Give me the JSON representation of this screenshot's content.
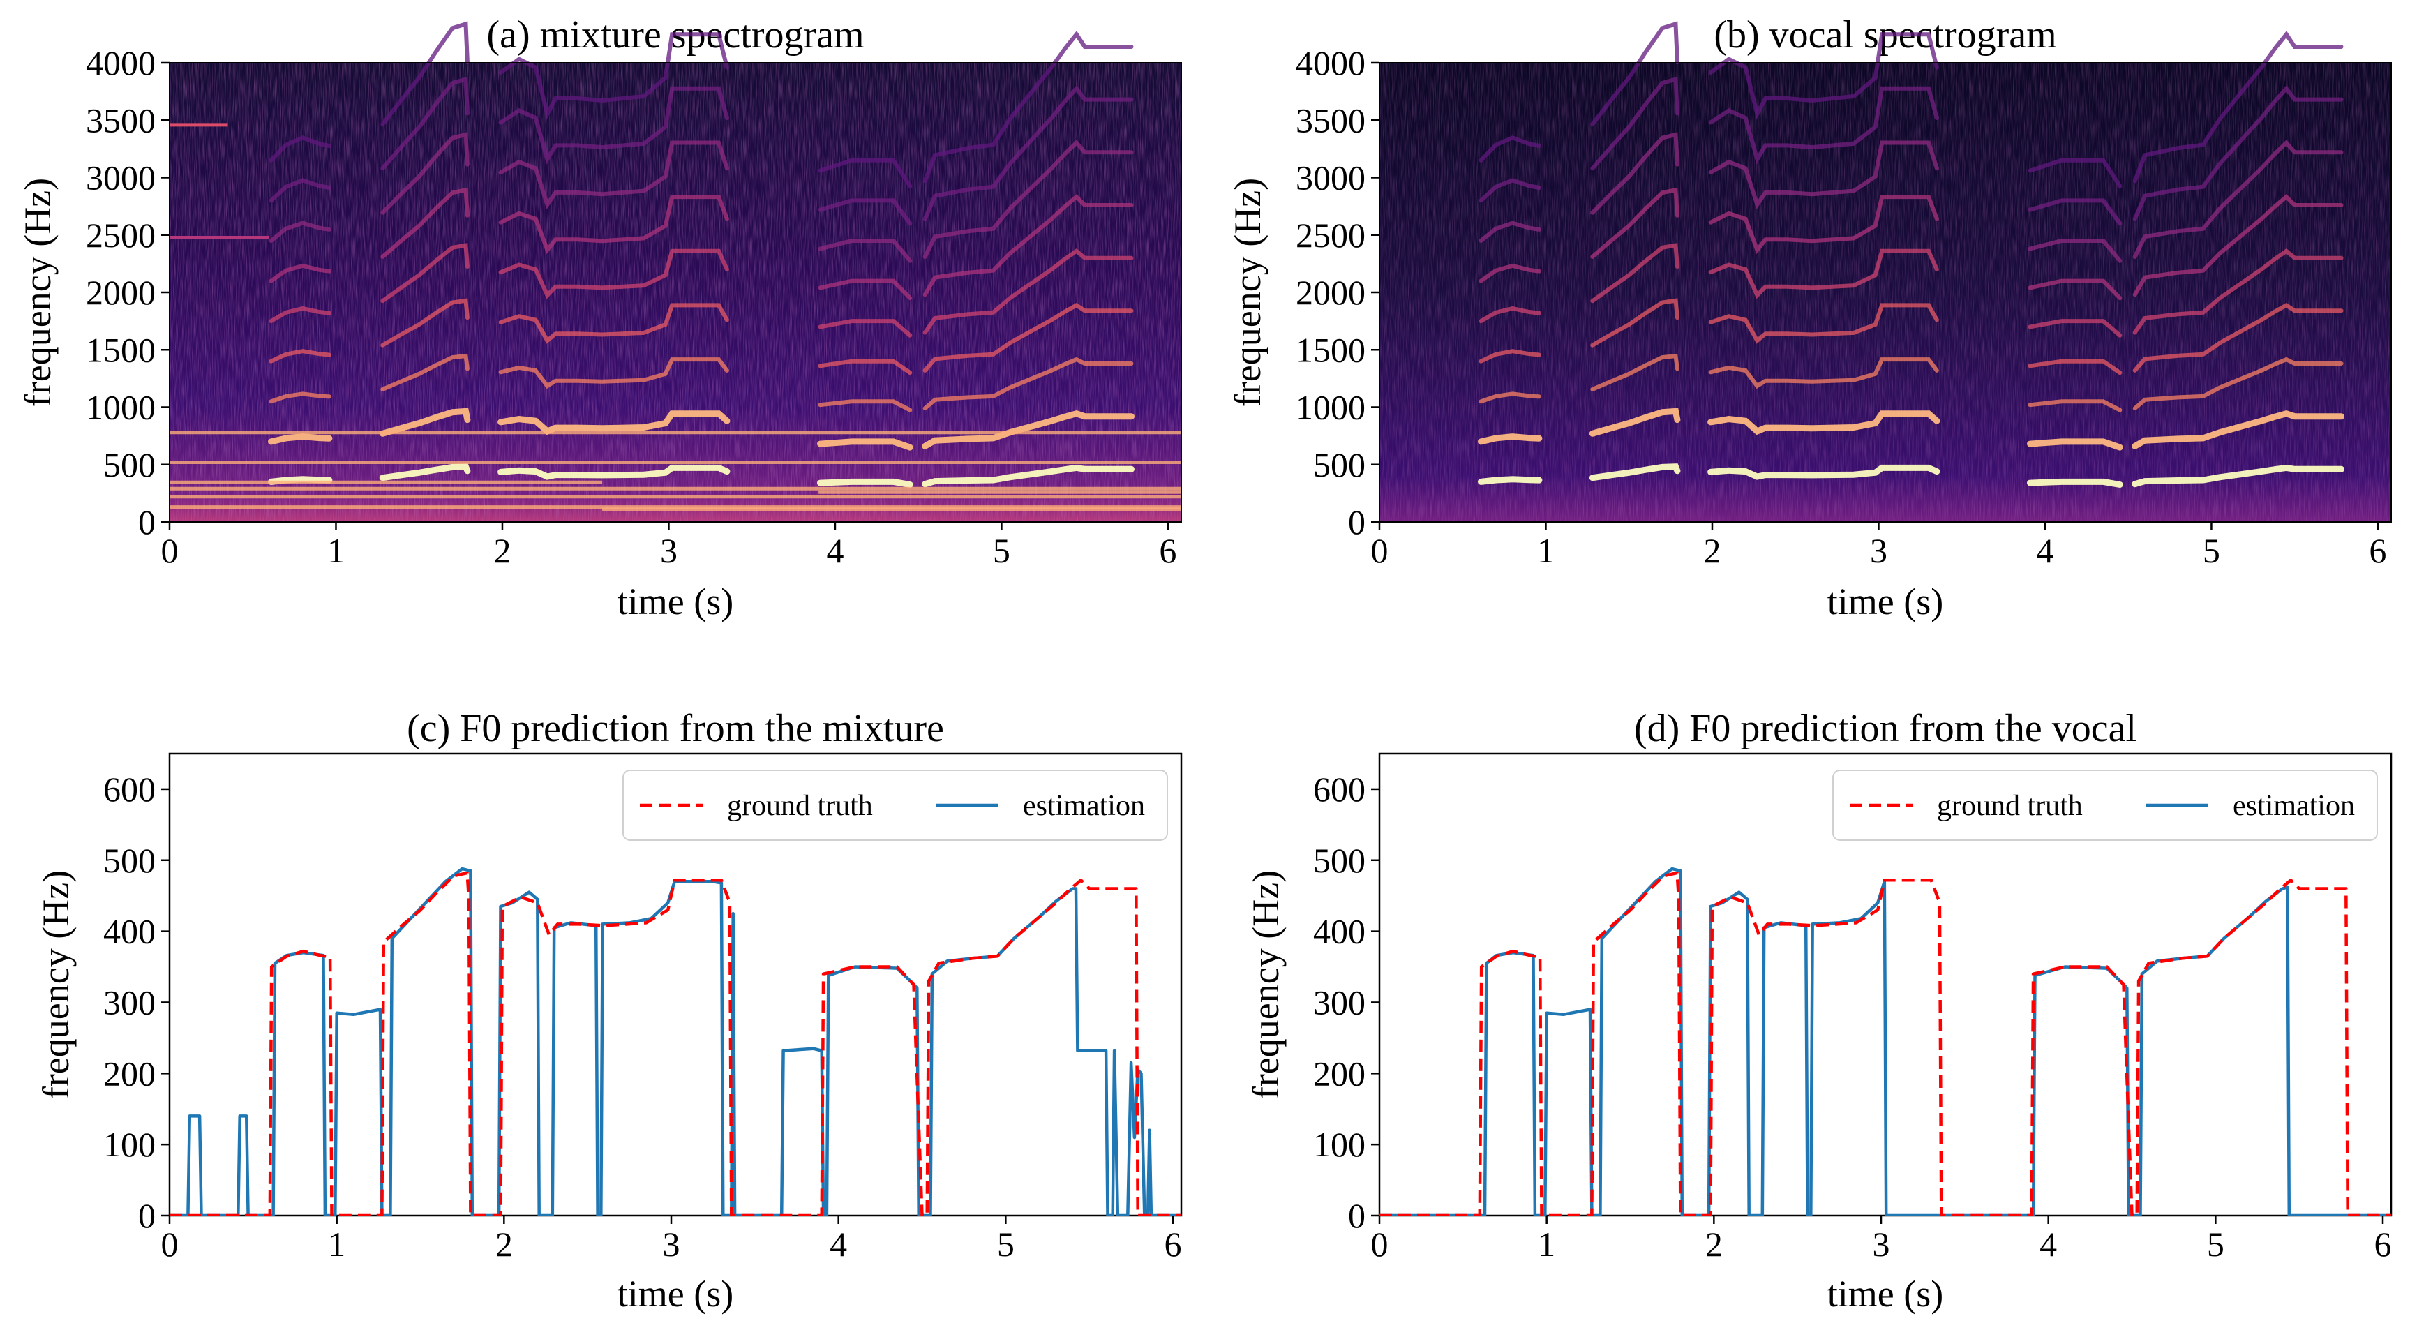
{
  "colors": {
    "ground_truth": "#ff0000",
    "estimation": "#1f77b4",
    "spectrogram_bg": "#000004",
    "spectrogram_hot": "#fcfdbf"
  },
  "chart_data": [
    {
      "id": "a",
      "type": "heatmap",
      "title": "(a) mixture spectrogram",
      "xlabel": "time (s)",
      "ylabel": "frequency (Hz)",
      "xlim": [
        0,
        6.08
      ],
      "ylim": [
        0,
        4000
      ],
      "xticks": [
        "0",
        "1",
        "2",
        "3",
        "4",
        "5",
        "6"
      ],
      "yticks": [
        "0",
        "500",
        "1000",
        "1500",
        "2000",
        "2500",
        "3000",
        "3500",
        "4000"
      ],
      "colormap": "magma",
      "source": "mixture"
    },
    {
      "id": "b",
      "type": "heatmap",
      "title": "(b) vocal spectrogram",
      "xlabel": "time (s)",
      "ylabel": "frequency (Hz)",
      "xlim": [
        0,
        6.08
      ],
      "ylim": [
        0,
        4000
      ],
      "xticks": [
        "0",
        "1",
        "2",
        "3",
        "4",
        "5",
        "6"
      ],
      "yticks": [
        "0",
        "500",
        "1000",
        "1500",
        "2000",
        "2500",
        "3000",
        "3500",
        "4000"
      ],
      "colormap": "magma",
      "source": "vocal"
    },
    {
      "id": "c",
      "type": "line",
      "title": "(c) F0 prediction from the mixture",
      "xlabel": "time (s)",
      "ylabel": "frequency (Hz)",
      "xlim": [
        0,
        6.05
      ],
      "ylim": [
        0,
        650
      ],
      "xticks": [
        "0",
        "1",
        "2",
        "3",
        "4",
        "5",
        "6"
      ],
      "yticks": [
        "0",
        "100",
        "200",
        "300",
        "400",
        "500",
        "600"
      ],
      "legend": "top-right",
      "series": [
        {
          "name": "ground truth",
          "style": "dashed",
          "points": [
            [
              0,
              0
            ],
            [
              0.6,
              0
            ],
            [
              0.61,
              350
            ],
            [
              0.7,
              365
            ],
            [
              0.8,
              372
            ],
            [
              0.9,
              366
            ],
            [
              0.96,
              364
            ],
            [
              0.97,
              0
            ],
            [
              1.27,
              0
            ],
            [
              1.28,
              385
            ],
            [
              1.4,
              410
            ],
            [
              1.5,
              430
            ],
            [
              1.6,
              455
            ],
            [
              1.7,
              478
            ],
            [
              1.78,
              482
            ],
            [
              1.79,
              445
            ],
            [
              1.8,
              0
            ],
            [
              1.98,
              0
            ],
            [
              1.99,
              435
            ],
            [
              2.1,
              448
            ],
            [
              2.2,
              440
            ],
            [
              2.27,
              395
            ],
            [
              2.32,
              410
            ],
            [
              2.45,
              410
            ],
            [
              2.6,
              408
            ],
            [
              2.85,
              412
            ],
            [
              2.98,
              430
            ],
            [
              3.02,
              472
            ],
            [
              3.3,
              472
            ],
            [
              3.35,
              440
            ],
            [
              3.36,
              0
            ],
            [
              3.9,
              0
            ],
            [
              3.91,
              340
            ],
            [
              4.1,
              350
            ],
            [
              4.35,
              350
            ],
            [
              4.45,
              325
            ],
            [
              4.5,
              0
            ],
            [
              4.53,
              0
            ],
            [
              4.54,
              330
            ],
            [
              4.6,
              355
            ],
            [
              4.8,
              362
            ],
            [
              4.95,
              365
            ],
            [
              5.05,
              390
            ],
            [
              5.2,
              420
            ],
            [
              5.3,
              440
            ],
            [
              5.38,
              458
            ],
            [
              5.45,
              472
            ],
            [
              5.5,
              460
            ],
            [
              5.78,
              460
            ],
            [
              5.79,
              0
            ],
            [
              6.05,
              0
            ]
          ]
        },
        {
          "name": "estimation",
          "style": "solid",
          "points": [
            [
              0,
              0
            ],
            [
              0.11,
              0
            ],
            [
              0.12,
              140
            ],
            [
              0.18,
              140
            ],
            [
              0.19,
              0
            ],
            [
              0.41,
              0
            ],
            [
              0.42,
              140
            ],
            [
              0.46,
              140
            ],
            [
              0.47,
              0
            ],
            [
              0.62,
              0
            ],
            [
              0.63,
              355
            ],
            [
              0.7,
              366
            ],
            [
              0.8,
              370
            ],
            [
              0.92,
              366
            ],
            [
              0.93,
              0
            ],
            [
              0.99,
              0
            ],
            [
              1.0,
              285
            ],
            [
              1.1,
              283
            ],
            [
              1.26,
              290
            ],
            [
              1.27,
              0
            ],
            [
              1.32,
              0
            ],
            [
              1.33,
              390
            ],
            [
              1.45,
              420
            ],
            [
              1.55,
              445
            ],
            [
              1.65,
              470
            ],
            [
              1.75,
              488
            ],
            [
              1.8,
              485
            ],
            [
              1.81,
              0
            ],
            [
              1.97,
              0
            ],
            [
              1.98,
              435
            ],
            [
              2.05,
              440
            ],
            [
              2.15,
              455
            ],
            [
              2.2,
              445
            ],
            [
              2.21,
              0
            ],
            [
              2.29,
              0
            ],
            [
              2.3,
              405
            ],
            [
              2.4,
              412
            ],
            [
              2.55,
              408
            ],
            [
              2.56,
              0
            ],
            [
              2.58,
              0
            ],
            [
              2.59,
              410
            ],
            [
              2.75,
              412
            ],
            [
              2.88,
              418
            ],
            [
              2.98,
              440
            ],
            [
              3.02,
              470
            ],
            [
              3.25,
              470
            ],
            [
              3.3,
              468
            ],
            [
              3.31,
              0
            ],
            [
              3.36,
              0
            ],
            [
              3.37,
              425
            ],
            [
              3.38,
              0
            ],
            [
              3.66,
              0
            ],
            [
              3.67,
              232
            ],
            [
              3.85,
              235
            ],
            [
              3.9,
              232
            ],
            [
              3.91,
              0
            ],
            [
              3.93,
              0
            ],
            [
              3.94,
              338
            ],
            [
              4.1,
              350
            ],
            [
              4.35,
              348
            ],
            [
              4.43,
              330
            ],
            [
              4.47,
              320
            ],
            [
              4.48,
              0
            ],
            [
              4.55,
              0
            ],
            [
              4.56,
              340
            ],
            [
              4.65,
              358
            ],
            [
              4.8,
              362
            ],
            [
              4.95,
              365
            ],
            [
              5.05,
              390
            ],
            [
              5.2,
              420
            ],
            [
              5.3,
              442
            ],
            [
              5.4,
              460
            ],
            [
              5.42,
              460
            ],
            [
              5.43,
              232
            ],
            [
              5.6,
              232
            ],
            [
              5.61,
              0
            ],
            [
              5.64,
              0
            ],
            [
              5.65,
              232
            ],
            [
              5.67,
              0
            ],
            [
              5.73,
              0
            ],
            [
              5.75,
              215
            ],
            [
              5.77,
              110
            ],
            [
              5.79,
              205
            ],
            [
              5.81,
              200
            ],
            [
              5.83,
              0
            ],
            [
              5.85,
              0
            ],
            [
              5.86,
              120
            ],
            [
              5.87,
              0
            ],
            [
              6.05,
              0
            ]
          ]
        }
      ]
    },
    {
      "id": "d",
      "type": "line",
      "title": "(d) F0 prediction from the vocal",
      "xlabel": "time (s)",
      "ylabel": "frequency (Hz)",
      "xlim": [
        0,
        6.05
      ],
      "ylim": [
        0,
        650
      ],
      "xticks": [
        "0",
        "1",
        "2",
        "3",
        "4",
        "5",
        "6"
      ],
      "yticks": [
        "0",
        "100",
        "200",
        "300",
        "400",
        "500",
        "600"
      ],
      "legend": "top-right",
      "series": [
        {
          "name": "ground truth",
          "style": "dashed",
          "points": [
            [
              0,
              0
            ],
            [
              0.6,
              0
            ],
            [
              0.61,
              350
            ],
            [
              0.7,
              365
            ],
            [
              0.8,
              372
            ],
            [
              0.9,
              366
            ],
            [
              0.96,
              364
            ],
            [
              0.97,
              0
            ],
            [
              1.27,
              0
            ],
            [
              1.28,
              385
            ],
            [
              1.4,
              410
            ],
            [
              1.5,
              430
            ],
            [
              1.6,
              455
            ],
            [
              1.7,
              478
            ],
            [
              1.78,
              482
            ],
            [
              1.79,
              445
            ],
            [
              1.8,
              0
            ],
            [
              1.98,
              0
            ],
            [
              1.99,
              435
            ],
            [
              2.1,
              448
            ],
            [
              2.2,
              440
            ],
            [
              2.27,
              395
            ],
            [
              2.32,
              410
            ],
            [
              2.45,
              410
            ],
            [
              2.6,
              408
            ],
            [
              2.85,
              412
            ],
            [
              2.98,
              430
            ],
            [
              3.02,
              472
            ],
            [
              3.3,
              472
            ],
            [
              3.35,
              440
            ],
            [
              3.36,
              0
            ],
            [
              3.9,
              0
            ],
            [
              3.91,
              340
            ],
            [
              4.1,
              350
            ],
            [
              4.35,
              350
            ],
            [
              4.45,
              325
            ],
            [
              4.5,
              0
            ],
            [
              4.53,
              0
            ],
            [
              4.54,
              330
            ],
            [
              4.6,
              355
            ],
            [
              4.8,
              362
            ],
            [
              4.95,
              365
            ],
            [
              5.05,
              390
            ],
            [
              5.2,
              420
            ],
            [
              5.3,
              440
            ],
            [
              5.38,
              458
            ],
            [
              5.45,
              472
            ],
            [
              5.5,
              460
            ],
            [
              5.78,
              460
            ],
            [
              5.79,
              0
            ],
            [
              6.05,
              0
            ]
          ]
        },
        {
          "name": "estimation",
          "style": "solid",
          "points": [
            [
              0,
              0
            ],
            [
              0.63,
              0
            ],
            [
              0.64,
              355
            ],
            [
              0.7,
              366
            ],
            [
              0.8,
              370
            ],
            [
              0.92,
              366
            ],
            [
              0.93,
              0
            ],
            [
              0.99,
              0
            ],
            [
              1.0,
              285
            ],
            [
              1.1,
              283
            ],
            [
              1.26,
              290
            ],
            [
              1.27,
              0
            ],
            [
              1.32,
              0
            ],
            [
              1.33,
              390
            ],
            [
              1.45,
              420
            ],
            [
              1.55,
              445
            ],
            [
              1.65,
              470
            ],
            [
              1.75,
              488
            ],
            [
              1.8,
              485
            ],
            [
              1.81,
              0
            ],
            [
              1.97,
              0
            ],
            [
              1.98,
              435
            ],
            [
              2.05,
              440
            ],
            [
              2.15,
              455
            ],
            [
              2.2,
              445
            ],
            [
              2.21,
              0
            ],
            [
              2.29,
              0
            ],
            [
              2.3,
              405
            ],
            [
              2.4,
              412
            ],
            [
              2.55,
              408
            ],
            [
              2.56,
              0
            ],
            [
              2.58,
              0
            ],
            [
              2.59,
              410
            ],
            [
              2.75,
              412
            ],
            [
              2.88,
              418
            ],
            [
              2.98,
              440
            ],
            [
              3.02,
              470
            ],
            [
              3.03,
              0
            ],
            [
              3.91,
              0
            ],
            [
              3.92,
              338
            ],
            [
              4.1,
              350
            ],
            [
              4.35,
              348
            ],
            [
              4.43,
              330
            ],
            [
              4.47,
              320
            ],
            [
              4.48,
              0
            ],
            [
              4.55,
              0
            ],
            [
              4.56,
              340
            ],
            [
              4.65,
              358
            ],
            [
              4.8,
              362
            ],
            [
              4.95,
              365
            ],
            [
              5.05,
              390
            ],
            [
              5.2,
              420
            ],
            [
              5.3,
              442
            ],
            [
              5.4,
              460
            ],
            [
              5.43,
              462
            ],
            [
              5.44,
              0
            ],
            [
              6.05,
              0
            ]
          ]
        }
      ]
    }
  ]
}
